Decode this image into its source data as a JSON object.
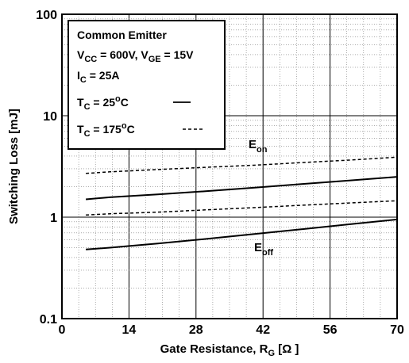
{
  "chart_data": {
    "type": "line",
    "x_axis": {
      "label_main": "Gate Resistance, R",
      "label_sub": "G",
      "label_tail": " [Ω ]",
      "range": [
        0,
        70
      ],
      "ticks": [
        0,
        14,
        28,
        42,
        56,
        70
      ],
      "tick_labels": [
        "0",
        "14",
        "28",
        "42",
        "56",
        "70"
      ]
    },
    "y_axis": {
      "label": "Switching Loss [mJ]",
      "scale": "log",
      "range": [
        0.1,
        100
      ],
      "ticks": [
        0.1,
        1,
        10,
        100
      ],
      "tick_labels": [
        "0.1",
        "1",
        "10",
        "100"
      ]
    },
    "grid": true,
    "legend": {
      "placement": "top-left",
      "line1": "Common Emitter",
      "line2": {
        "v1": "V",
        "v1_sub": "CC",
        "v1_rest": " = 600V, V",
        "v2_sub": "GE",
        "v2_rest": " = 15V"
      },
      "line3": {
        "main": "I",
        "sub": "C",
        "rest": " = 25A"
      },
      "line4": {
        "main": "T",
        "sub": "C",
        "rest": " = 25",
        "sup": "o",
        "tail": "C"
      },
      "line5": {
        "main": "T",
        "sub": "C",
        "rest": " = 175",
        "sup": "o",
        "tail": "C"
      }
    },
    "annotations": [
      {
        "main": "E",
        "sub": "on"
      },
      {
        "main": "E",
        "sub": "off"
      }
    ],
    "series": [
      {
        "curve": "Eon",
        "temperature": "175C",
        "style": "dashed",
        "x": [
          5,
          10,
          20,
          30,
          40,
          50,
          60,
          70
        ],
        "y": [
          2.7,
          2.8,
          2.95,
          3.1,
          3.25,
          3.45,
          3.65,
          3.9
        ]
      },
      {
        "curve": "Eon",
        "temperature": "25C",
        "style": "solid",
        "x": [
          5,
          10,
          20,
          30,
          40,
          50,
          60,
          70
        ],
        "y": [
          1.5,
          1.57,
          1.68,
          1.8,
          1.95,
          2.12,
          2.3,
          2.5
        ]
      },
      {
        "curve": "Eoff",
        "temperature": "175C",
        "style": "dashed",
        "x": [
          5,
          10,
          20,
          30,
          40,
          50,
          60,
          70
        ],
        "y": [
          1.05,
          1.08,
          1.12,
          1.18,
          1.24,
          1.31,
          1.38,
          1.45
        ]
      },
      {
        "curve": "Eoff",
        "temperature": "25C",
        "style": "solid",
        "x": [
          5,
          10,
          20,
          30,
          40,
          50,
          60,
          70
        ],
        "y": [
          0.48,
          0.5,
          0.55,
          0.61,
          0.68,
          0.76,
          0.85,
          0.95
        ]
      }
    ]
  }
}
